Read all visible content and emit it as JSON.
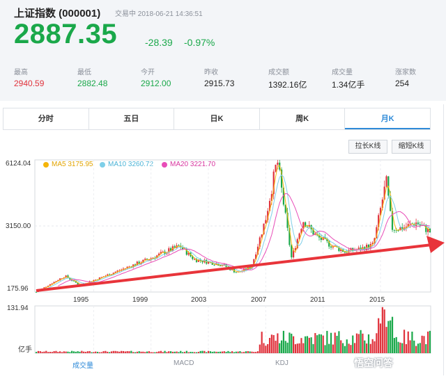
{
  "header": {
    "title": "上证指数 (000001)",
    "status": "交易中 2018-06-21 14:36:51",
    "price": "2887.35",
    "change": "-28.39",
    "change_pct": "-0.97%"
  },
  "stats": [
    {
      "label": "最高",
      "value": "2940.59",
      "color": "#e0323c"
    },
    {
      "label": "最低",
      "value": "2882.48",
      "color": "#1aa84a"
    },
    {
      "label": "今开",
      "value": "2912.00",
      "color": "#1aa84a"
    },
    {
      "label": "昨收",
      "value": "2915.73",
      "color": "#222222"
    },
    {
      "label": "成交额",
      "value": "1392.16亿",
      "color": "#222222"
    },
    {
      "label": "成交量",
      "value": "1.34亿手",
      "color": "#222222"
    },
    {
      "label": "涨家数",
      "value": "254",
      "color": "#222222"
    }
  ],
  "tabs": [
    "分时",
    "五日",
    "日K",
    "周K",
    "月K"
  ],
  "active_tab": "月K",
  "buttons": {
    "stretch": "拉长K线",
    "shrink": "缩短K线"
  },
  "legend": [
    {
      "text": "MA5 3175.95",
      "color": "#f5b50a"
    },
    {
      "text": "MA10 3260.72",
      "color": "#7ecfe8"
    },
    {
      "text": "MA20 3221.70",
      "color": "#e84db8"
    }
  ],
  "axis": {
    "y_top": "6124.04",
    "y_mid": "3150.00",
    "y_bottom": "175.96",
    "vol_top": "131.94",
    "vol_unit": "亿手",
    "x_labels": [
      "1995",
      "1999",
      "2003",
      "2007",
      "2011",
      "2015"
    ]
  },
  "indicator_tabs": [
    "成交量",
    "MACD",
    "KDJ"
  ],
  "active_indicator": "成交量",
  "watermark": "悟空问答",
  "colors": {
    "up": "#e0323c",
    "down": "#1aa84a",
    "accent": "#2e8ad8",
    "arrow": "#e8343a"
  },
  "chart_data": {
    "type": "line",
    "title": "",
    "x": [
      1991,
      1993,
      1994,
      1995,
      1997,
      1999,
      2001,
      2002,
      2004,
      2005,
      2006,
      2007,
      2007.8,
      2008.8,
      2009.6,
      2010.5,
      2011.5,
      2012.5,
      2013.5,
      2014.5,
      2015.4,
      2015.8,
      2016.5,
      2017.5,
      2018.45
    ],
    "series": [
      {
        "name": "",
        "values": [
          180,
          900,
          500,
          700,
          1200,
          1700,
          2250,
          1650,
          1400,
          1050,
          1300,
          3500,
          6124,
          1700,
          3400,
          2700,
          2300,
          2000,
          2100,
          2300,
          5178,
          3050,
          3050,
          3300,
          2887
        ]
      }
    ],
    "ylim": [
      175.96,
      6124.04
    ],
    "xlim": [
      1990.9,
      2018.5
    ],
    "x_ticks": [
      1995,
      1999,
      2003,
      2007,
      2011,
      2015
    ],
    "volume_max": 131.94,
    "volume_unit": "亿手",
    "moving_averages": [
      "MA5 3175.95",
      "MA10 3260.72",
      "MA20 3221.70"
    ]
  }
}
